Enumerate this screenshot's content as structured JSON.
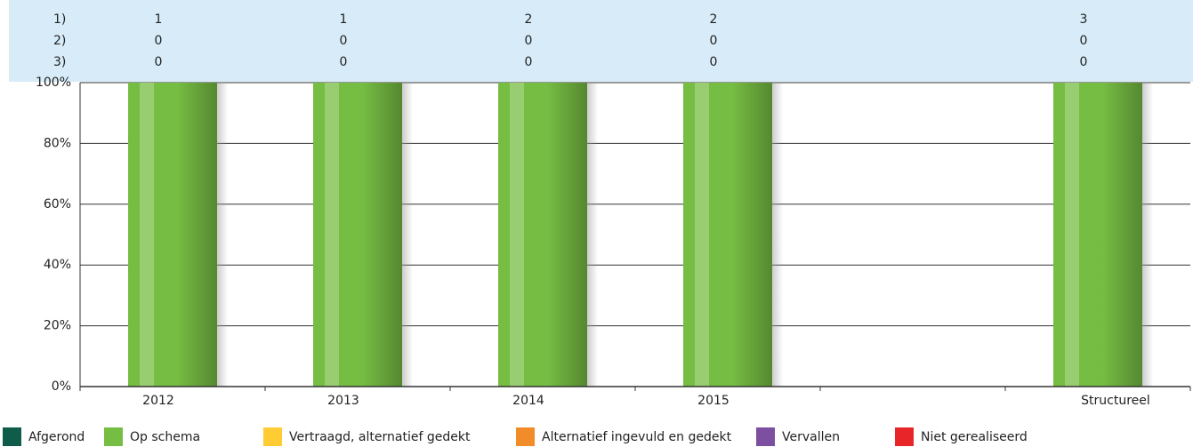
{
  "chart_data": {
    "type": "stacked_bar",
    "categories": [
      "2012",
      "2013",
      "2014",
      "2015",
      null,
      "Structureel"
    ],
    "series": [
      {
        "name": "Afgerond",
        "color": "#0f5c4a",
        "values": [
          0,
          0,
          0,
          0,
          null,
          0
        ]
      },
      {
        "name": "Op schema",
        "color": "#76bd43",
        "values": [
          100,
          100,
          100,
          100,
          null,
          100
        ]
      },
      {
        "name": "Vertraagd, alternatief gedekt",
        "color": "#ffcc33",
        "values": [
          0,
          0,
          0,
          0,
          null,
          0
        ]
      },
      {
        "name": "Alternatief ingevuld en gedekt",
        "color": "#f28c28",
        "values": [
          0,
          0,
          0,
          0,
          null,
          0
        ]
      },
      {
        "name": "Vervallen",
        "color": "#7d4fa0",
        "values": [
          0,
          0,
          0,
          0,
          null,
          0
        ]
      },
      {
        "name": "Niet gerealiseerd",
        "color": "#e8262a",
        "values": [
          0,
          0,
          0,
          0,
          null,
          0
        ]
      }
    ],
    "count_rows": [
      {
        "label": "1)",
        "values": [
          1,
          1,
          2,
          2,
          null,
          3
        ]
      },
      {
        "label": "2)",
        "values": [
          0,
          0,
          0,
          0,
          null,
          0
        ]
      },
      {
        "label": "3)",
        "values": [
          0,
          0,
          0,
          0,
          null,
          0
        ]
      }
    ],
    "ylim": [
      0,
      100
    ],
    "yticks": [
      {
        "value": 0,
        "label": "0%"
      },
      {
        "value": 20,
        "label": "20%"
      },
      {
        "value": 40,
        "label": "40%"
      },
      {
        "value": 60,
        "label": "60%"
      },
      {
        "value": 80,
        "label": "80%"
      },
      {
        "value": 100,
        "label": "100%"
      }
    ],
    "grid": true
  }
}
